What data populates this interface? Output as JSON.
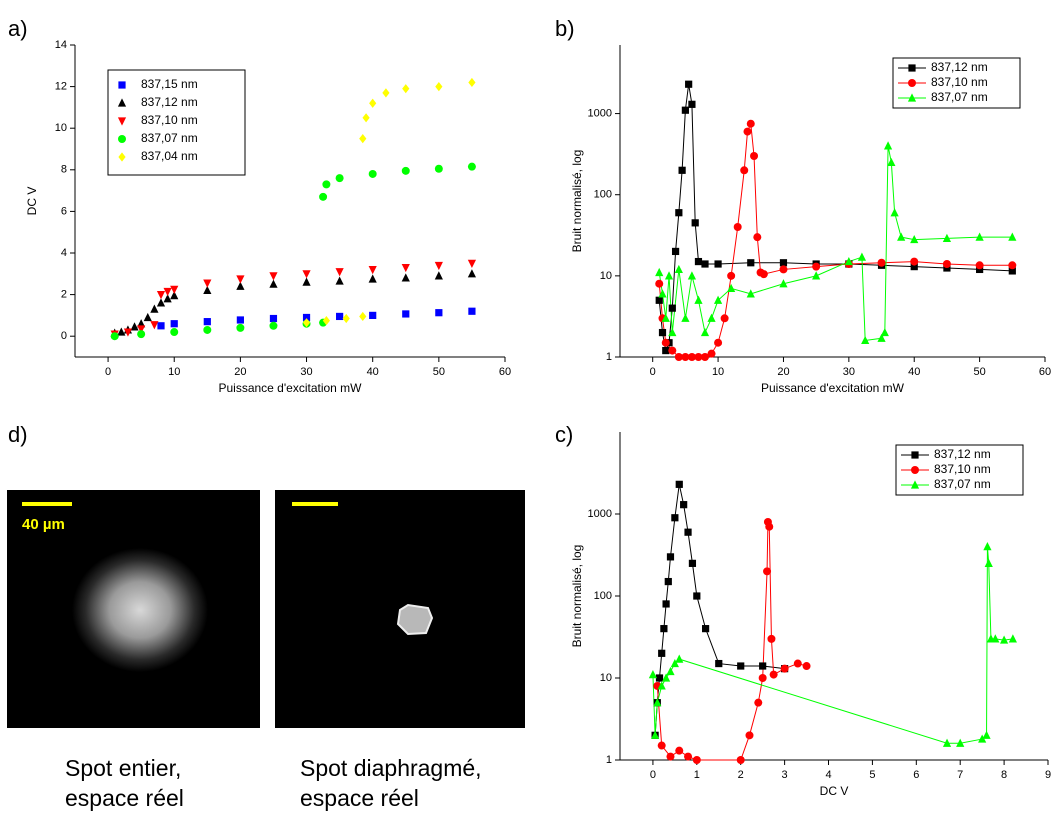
{
  "chart_data": [
    {
      "type": "scatter",
      "panel_label": "a)",
      "xlabel": "Puissance d'excitation mW",
      "ylabel": "DC V",
      "xlim": [
        -5,
        60
      ],
      "xticks": [
        0,
        10,
        20,
        30,
        40,
        50,
        60
      ],
      "ylim": [
        -1,
        14
      ],
      "yticks": [
        0,
        2,
        4,
        6,
        8,
        10,
        12,
        14
      ],
      "log_y": false,
      "lines": false,
      "legend": "upper left",
      "series": [
        {
          "name": "837,15 nm",
          "color": "#0000ff",
          "marker": "square",
          "x": [
            8,
            10,
            15,
            20,
            25,
            30,
            35,
            40,
            45,
            50,
            55
          ],
          "values": [
            0.5,
            0.6,
            0.7,
            0.78,
            0.85,
            0.9,
            0.95,
            1.0,
            1.07,
            1.13,
            1.2
          ]
        },
        {
          "name": "837,12 nm",
          "color": "#000000",
          "marker": "triangle-up",
          "x": [
            1,
            2,
            3,
            4,
            5,
            6,
            7,
            8,
            9,
            10,
            15,
            20,
            25,
            30,
            35,
            40,
            45,
            50,
            55
          ],
          "values": [
            0.15,
            0.2,
            0.3,
            0.45,
            0.6,
            0.9,
            1.3,
            1.6,
            1.8,
            1.95,
            2.2,
            2.4,
            2.5,
            2.6,
            2.65,
            2.75,
            2.8,
            2.9,
            3.0
          ]
        },
        {
          "name": "837,10 nm",
          "color": "#ff0000",
          "marker": "triangle-down",
          "x": [
            1,
            3,
            5,
            7,
            8,
            9,
            10,
            15,
            20,
            25,
            30,
            35,
            40,
            45,
            50,
            55
          ],
          "values": [
            0.1,
            0.2,
            0.35,
            0.55,
            2.0,
            2.15,
            2.25,
            2.55,
            2.75,
            2.9,
            3.0,
            3.1,
            3.2,
            3.3,
            3.4,
            3.5
          ]
        },
        {
          "name": "837,07 nm",
          "color": "#00ff00",
          "marker": "circle",
          "x": [
            1,
            5,
            10,
            15,
            20,
            25,
            30,
            32.5,
            32.5,
            33,
            35,
            40,
            45,
            50,
            55
          ],
          "values": [
            0,
            0.1,
            0.2,
            0.3,
            0.4,
            0.5,
            0.6,
            0.65,
            6.7,
            7.3,
            7.6,
            7.8,
            7.95,
            8.05,
            8.15
          ]
        },
        {
          "name": "837,04 nm",
          "color": "#ffff00",
          "marker": "diamond",
          "x": [
            30,
            33,
            36,
            38.5,
            38.5,
            39,
            40,
            42,
            45,
            50,
            55
          ],
          "values": [
            0.65,
            0.75,
            0.85,
            0.95,
            9.5,
            10.5,
            11.2,
            11.7,
            11.9,
            12.0,
            12.2
          ]
        }
      ]
    },
    {
      "type": "line",
      "panel_label": "b)",
      "xlabel": "Puissance d'excitation mW",
      "ylabel": "Bruit normalisé, log",
      "xlim": [
        -5,
        60
      ],
      "xticks": [
        0,
        10,
        20,
        30,
        40,
        50,
        60
      ],
      "ylim": [
        1,
        7000
      ],
      "yticks": [
        1,
        10,
        100,
        1000
      ],
      "log_y": true,
      "lines": true,
      "legend": "upper right",
      "series": [
        {
          "name": "837,12 nm",
          "color": "#000000",
          "marker": "square",
          "x": [
            1,
            1.5,
            2,
            2.5,
            3,
            3.5,
            4,
            4.5,
            5,
            5.5,
            6,
            6.5,
            7,
            8,
            10,
            15,
            20,
            25,
            30,
            35,
            40,
            45,
            50,
            55
          ],
          "values": [
            5,
            2,
            1.2,
            1.5,
            4,
            20,
            60,
            200,
            1100,
            2300,
            1300,
            45,
            15,
            14,
            14,
            14.5,
            14.5,
            14,
            14,
            13.5,
            13,
            12.5,
            12,
            11.5
          ]
        },
        {
          "name": "837,10 nm",
          "color": "#ff0000",
          "marker": "circle",
          "x": [
            1,
            1.5,
            2,
            3,
            4,
            5,
            6,
            7,
            8,
            9,
            10,
            11,
            12,
            13,
            14,
            14.5,
            15,
            15.5,
            16,
            16.5,
            17,
            20,
            25,
            30,
            35,
            40,
            45,
            50,
            55
          ],
          "values": [
            8,
            3,
            1.5,
            1.2,
            1,
            1,
            1,
            1,
            1,
            1.1,
            1.5,
            3,
            10,
            40,
            200,
            600,
            750,
            300,
            30,
            11,
            10.5,
            12,
            13,
            14,
            14.5,
            15,
            14,
            13.5,
            13.5
          ]
        },
        {
          "name": "837,07 nm",
          "color": "#00ff00",
          "marker": "triangle-up",
          "x": [
            1,
            1.5,
            2,
            2.5,
            3,
            4,
            5,
            6,
            7,
            8,
            9,
            10,
            12,
            15,
            20,
            25,
            30,
            32,
            32.5,
            35,
            35.5,
            36,
            36.5,
            37,
            38,
            40,
            45,
            50,
            55
          ],
          "values": [
            11,
            6,
            3,
            10,
            2,
            12,
            3,
            10,
            5,
            2,
            3,
            5,
            7,
            6,
            8,
            10,
            15,
            17,
            1.6,
            1.7,
            2,
            400,
            250,
            60,
            30,
            28,
            29,
            30,
            30
          ]
        }
      ]
    },
    {
      "type": "line",
      "panel_label": "c)",
      "xlabel": "DC V",
      "ylabel": "Bruit normalisé, log",
      "xlim": [
        -0.75,
        9
      ],
      "xticks": [
        0,
        1,
        2,
        3,
        4,
        5,
        6,
        7,
        8,
        9
      ],
      "ylim": [
        1,
        10000
      ],
      "yticks": [
        1,
        10,
        100,
        1000
      ],
      "log_y": true,
      "lines": true,
      "legend": "upper right",
      "series": [
        {
          "name": "837,12 nm",
          "color": "#000000",
          "marker": "square",
          "x": [
            0.05,
            0.1,
            0.15,
            0.2,
            0.25,
            0.3,
            0.35,
            0.4,
            0.5,
            0.6,
            0.7,
            0.8,
            0.9,
            1.0,
            1.2,
            1.5,
            2,
            2.5,
            3
          ],
          "values": [
            2,
            5,
            10,
            20,
            40,
            80,
            150,
            300,
            900,
            2300,
            1300,
            600,
            250,
            100,
            40,
            15,
            14,
            14,
            13
          ]
        },
        {
          "name": "837,10 nm",
          "color": "#ff0000",
          "marker": "circle",
          "x": [
            0.1,
            0.2,
            0.4,
            0.6,
            0.8,
            1.0,
            2.0,
            2.2,
            2.4,
            2.5,
            2.6,
            2.62,
            2.65,
            2.7,
            2.75,
            3,
            3.3,
            3.5
          ],
          "values": [
            8,
            1.5,
            1.1,
            1.3,
            1.1,
            1,
            1,
            2,
            5,
            10,
            200,
            800,
            700,
            30,
            11,
            13,
            15,
            14
          ]
        },
        {
          "name": "837,07 nm",
          "color": "#00ff00",
          "marker": "triangle-up",
          "x": [
            0,
            0.05,
            0.1,
            0.2,
            0.3,
            0.4,
            0.5,
            0.6,
            6.7,
            7.0,
            7.5,
            7.6,
            7.62,
            7.65,
            7.7,
            7.8,
            8.0,
            8.2
          ],
          "values": [
            11,
            2,
            5,
            8,
            10,
            12,
            15,
            17,
            1.6,
            1.6,
            1.8,
            2,
            400,
            250,
            30,
            30,
            29,
            30
          ]
        }
      ]
    }
  ],
  "images": {
    "panel_label": "d)",
    "left": {
      "scale_label": "40 µm",
      "caption": [
        "Spot entier,",
        "espace réel"
      ]
    },
    "right": {
      "caption": [
        "Spot diaphragmé,",
        "espace réel"
      ]
    }
  }
}
